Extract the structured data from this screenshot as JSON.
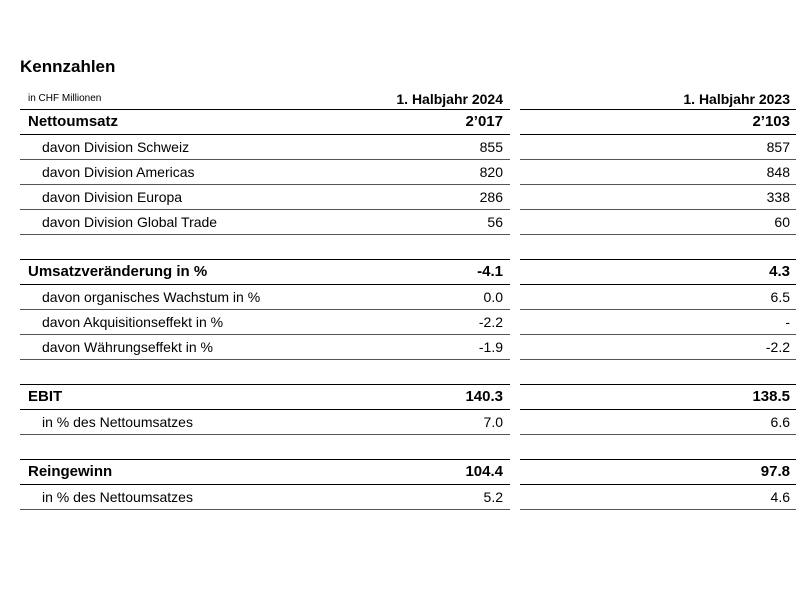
{
  "title": "Kennzahlen",
  "header": {
    "unit": "in CHF Millionen",
    "col1": "1. Halbjahr 2024",
    "col2": "1. Halbjahr 2023"
  },
  "sections": {
    "nettoumsatz": {
      "label": "Nettoumsatz",
      "v2024": "2’017",
      "v2023": "2’103",
      "rows": [
        {
          "label": "davon Division Schweiz",
          "v2024": "855",
          "v2023": "857"
        },
        {
          "label": "davon Division Americas",
          "v2024": "820",
          "v2023": "848"
        },
        {
          "label": "davon Division Europa",
          "v2024": "286",
          "v2023": "338"
        },
        {
          "label": "davon Division Global Trade",
          "v2024": "56",
          "v2023": "60"
        }
      ]
    },
    "umsatz": {
      "label": "Umsatzveränderung in %",
      "v2024": "-4.1",
      "v2023": "4.3",
      "rows": [
        {
          "label": "davon organisches Wachstum in %",
          "v2024": "0.0",
          "v2023": "6.5"
        },
        {
          "label": "davon Akquisitionseffekt in %",
          "v2024": "-2.2",
          "v2023": "-"
        },
        {
          "label": "davon Währungseffekt in %",
          "v2024": "-1.9",
          "v2023": "-2.2"
        }
      ]
    },
    "ebit": {
      "label": "EBIT",
      "v2024": "140.3",
      "v2023": "138.5",
      "rows": [
        {
          "label": "in % des Nettoumsatzes",
          "v2024": "7.0",
          "v2023": "6.6"
        }
      ]
    },
    "reingewinn": {
      "label": "Reingewinn",
      "v2024": "104.4",
      "v2023": "97.8",
      "rows": [
        {
          "label": "in % des Nettoumsatzes",
          "v2024": "5.2",
          "v2023": "4.6"
        }
      ]
    }
  }
}
